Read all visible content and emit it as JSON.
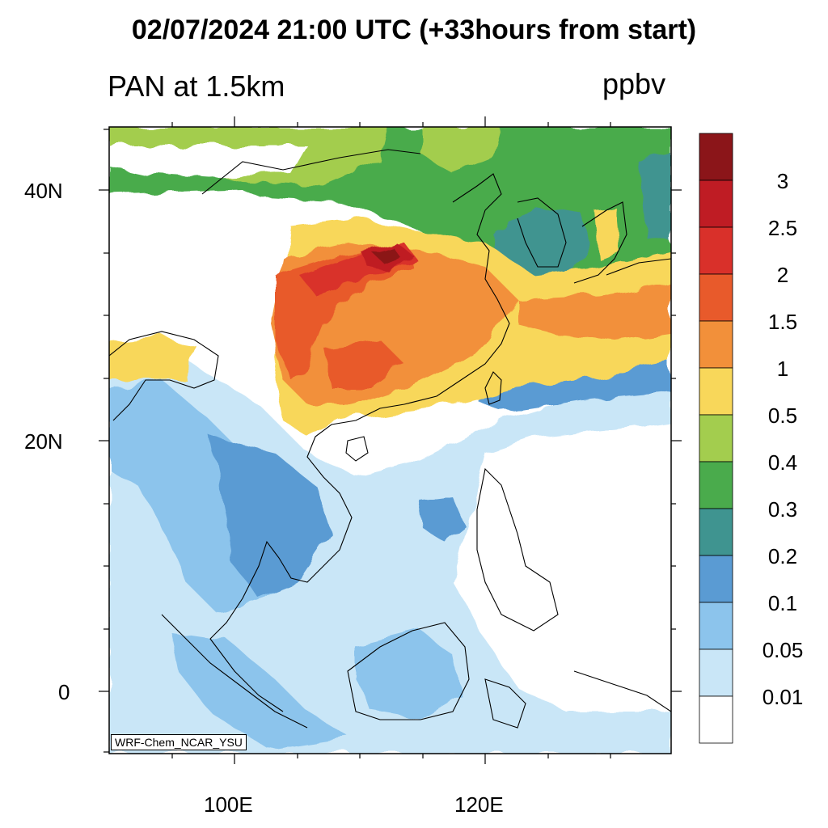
{
  "title": "02/07/2024 21:00 UTC (+33hours from start)",
  "subtitle": "PAN at 1.5km",
  "units": "ppbv",
  "credit": "WRF-Chem_NCAR_YSU",
  "axes": {
    "lon_ticks": [
      "100E",
      "120E"
    ],
    "lat_ticks": [
      "40N",
      "20N",
      "0"
    ]
  },
  "colorbar": {
    "labels": [
      "3",
      "2.5",
      "2",
      "1.5",
      "1",
      "0.5",
      "0.4",
      "0.3",
      "0.2",
      "0.1",
      "0.05",
      "0.01"
    ],
    "colors": [
      "#8b1519",
      "#bf1c24",
      "#d9302a",
      "#e85a2b",
      "#f2903a",
      "#f8d75a",
      "#a3cd4e",
      "#4aab4c",
      "#3f9490",
      "#5a9bd3",
      "#8cc4ec",
      "#c9e6f7",
      "#ffffff"
    ]
  }
}
